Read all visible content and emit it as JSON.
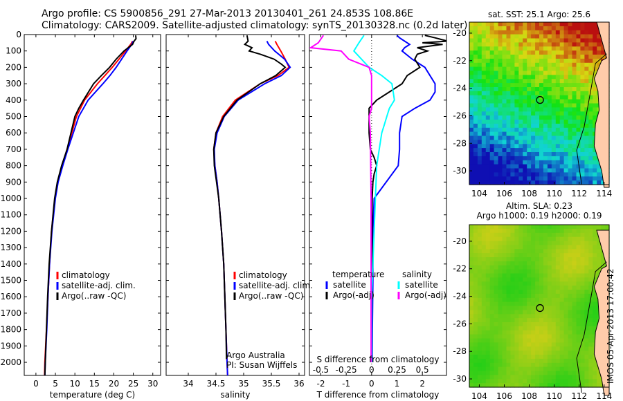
{
  "header": {
    "line1": "Argo profile: CS 5900856_291 27-Mar-2013 20130401_261 24.853S 108.86E",
    "line2": "Climatology: CARS2009. Satellite-adjusted climatology: synTS_20130328.nc (0.2d later)"
  },
  "stamp": "IMOS 05-Apr-2013 17:00:42",
  "colors": {
    "red": "#ff0000",
    "blue": "#0000ff",
    "black": "#000000",
    "cyan": "#00ffff",
    "magenta": "#ff00ff"
  },
  "chart_data": [
    {
      "type": "line",
      "xlabel": "temperature (deg C)",
      "ylabel": "",
      "xlim": [
        -3,
        32
      ],
      "ylim": [
        2080,
        0
      ],
      "xticks": [
        "0",
        "5",
        "10",
        "15",
        "20",
        "25",
        "30"
      ],
      "xtick_values": [
        0,
        5,
        10,
        15,
        20,
        25,
        30
      ],
      "yticks": [
        "0",
        "100",
        "200",
        "300",
        "400",
        "500",
        "600",
        "700",
        "800",
        "900",
        "1000",
        "1100",
        "1200",
        "1300",
        "1400",
        "1500",
        "1600",
        "1700",
        "1800",
        "1900",
        "2000"
      ],
      "ytick_values": [
        0,
        100,
        200,
        300,
        400,
        500,
        600,
        700,
        800,
        900,
        1000,
        1100,
        1200,
        1300,
        1400,
        1500,
        1600,
        1700,
        1800,
        1900,
        2000
      ],
      "legend": [
        "climatology",
        "satellite-adj. clim.",
        "Argo(..raw -QC)"
      ],
      "series": [
        {
          "name": "climatology",
          "color": "red",
          "depth": [
            40,
            60,
            100,
            150,
            200,
            250,
            300,
            400,
            500,
            600,
            700,
            800,
            900,
            1000,
            1200,
            1400,
            1600,
            1800,
            2000,
            2080
          ],
          "values": [
            24.8,
            24.3,
            23,
            21.3,
            19.6,
            17.7,
            15.8,
            12.5,
            10.4,
            9.2,
            8,
            6.8,
            5.6,
            4.9,
            4,
            3.5,
            3.1,
            2.7,
            2.3,
            2.2
          ]
        },
        {
          "name": "satellite-adj. clim.",
          "color": "blue",
          "depth": [
            40,
            60,
            100,
            150,
            200,
            250,
            300,
            400,
            500,
            600,
            700,
            800,
            900,
            1000,
            1200,
            1400,
            1600,
            1800,
            2000,
            2080
          ],
          "values": [
            25,
            24.6,
            23.4,
            22,
            20.6,
            19,
            17.2,
            13.4,
            11,
            9.6,
            8.2,
            6.9,
            5.7,
            5,
            4.1,
            3.5,
            3.1,
            2.8,
            2.4,
            2.3
          ]
        },
        {
          "name": "Argo(..raw -QC)",
          "color": "black",
          "depth": [
            5,
            25,
            40,
            60,
            100,
            150,
            200,
            250,
            300,
            400,
            450,
            500,
            600,
            700,
            800,
            900,
            1000,
            1200,
            1400,
            1600,
            1800,
            2000,
            2080
          ],
          "values": [
            25.6,
            25.7,
            25.2,
            24.8,
            22.6,
            20.6,
            18.9,
            16.8,
            14.8,
            12.2,
            11,
            10,
            9,
            8,
            6.6,
            5.5,
            4.8,
            4,
            3.4,
            3,
            2.7,
            2.4,
            2.3
          ]
        }
      ]
    },
    {
      "type": "line",
      "xlabel": "salinity",
      "ylabel": "",
      "xlim": [
        33.6,
        36.1
      ],
      "ylim": [
        2080,
        0
      ],
      "xticks": [
        "34",
        "34.5",
        "35",
        "35.5",
        "36"
      ],
      "xtick_values": [
        34,
        34.5,
        35,
        35.5,
        36
      ],
      "legend": [
        "climatology",
        "satellite-adj. clim.",
        "Argo(..raw -QC)"
      ],
      "annotation": [
        "Argo Australia",
        "PI: Susan Wijffels"
      ],
      "series": [
        {
          "name": "climatology",
          "color": "red",
          "depth": [
            40,
            60,
            100,
            150,
            200,
            250,
            300,
            400,
            500,
            600,
            700,
            800,
            900,
            1000,
            1200,
            1400,
            1600,
            1800,
            2000,
            2080
          ],
          "values": [
            35.57,
            35.6,
            35.67,
            35.75,
            35.82,
            35.62,
            35.3,
            34.85,
            34.62,
            34.5,
            34.46,
            34.48,
            34.52,
            34.55,
            34.6,
            34.64,
            34.66,
            34.68,
            34.7,
            34.71
          ]
        },
        {
          "name": "satellite-adj. clim.",
          "color": "blue",
          "depth": [
            40,
            60,
            100,
            150,
            200,
            250,
            300,
            400,
            500,
            600,
            700,
            800,
            900,
            1000,
            1200,
            1400,
            1600,
            1800,
            2000,
            2080
          ],
          "values": [
            35.42,
            35.45,
            35.56,
            35.74,
            35.84,
            35.68,
            35.38,
            34.9,
            34.65,
            34.52,
            34.47,
            34.48,
            34.52,
            34.55,
            34.6,
            34.64,
            34.66,
            34.68,
            34.7,
            34.71
          ]
        },
        {
          "name": "Argo(..raw -QC)",
          "color": "black",
          "depth": [
            5,
            40,
            60,
            80,
            100,
            120,
            150,
            180,
            200,
            250,
            300,
            400,
            500,
            600,
            700,
            800,
            900,
            1000,
            1200,
            1400,
            1600,
            1800,
            1980
          ],
          "values": [
            35.06,
            35.08,
            35.02,
            35.15,
            35.1,
            35.3,
            35.55,
            35.68,
            35.75,
            35.58,
            35.3,
            34.88,
            34.64,
            34.5,
            34.46,
            34.47,
            34.51,
            34.55,
            34.6,
            34.64,
            34.66,
            34.68,
            34.69
          ]
        }
      ]
    },
    {
      "type": "line",
      "xlabel": "T difference from climatology",
      "xlabel2": "S difference from climatology",
      "xlim": [
        -2.45,
        2.95
      ],
      "ylim": [
        2080,
        0
      ],
      "xticks": [
        "-2",
        "-1",
        "0",
        "1",
        "2"
      ],
      "xtick_values": [
        -2,
        -1,
        0,
        1,
        2
      ],
      "xticks_S": [
        "-0.5",
        "-0.25",
        "0",
        "0.25",
        "0.5"
      ],
      "legend_T_title": "temperature",
      "legend_S_title": "salinity",
      "legend": [
        "satellite",
        "Argo(-adj)",
        "satellite",
        "Argo(-adj)"
      ],
      "series": [
        {
          "name": "satellite",
          "group": "temperature",
          "color": "blue",
          "depth": [
            5,
            20,
            40,
            60,
            80,
            100,
            150,
            200,
            250,
            300,
            350,
            400,
            450,
            500,
            600,
            700,
            800,
            1000,
            1200,
            1500,
            1800,
            2000
          ],
          "values": [
            1,
            1.1,
            1.3,
            1.5,
            1.3,
            1.2,
            1.6,
            2.1,
            2.3,
            2.5,
            2.5,
            2.3,
            1.7,
            1.2,
            1.1,
            1.1,
            1.05,
            0.1,
            0.05,
            0.05,
            0.03,
            0.02
          ]
        },
        {
          "name": "Argo(-adj)",
          "group": "temperature",
          "color": "black",
          "depth": [
            5,
            20,
            40,
            50,
            60,
            80,
            100,
            120,
            150,
            200,
            250,
            300,
            350,
            400,
            450,
            500,
            600,
            700,
            750,
            800,
            850,
            900,
            1000,
            1500,
            2000
          ],
          "values": [
            2.1,
            2.5,
            3,
            2,
            2.8,
            1.8,
            2.2,
            1.8,
            1.7,
            1.9,
            1.4,
            1.2,
            0.7,
            0.2,
            -0.1,
            -0.1,
            -0.1,
            -0.05,
            0.1,
            0.2,
            0.1,
            0.05,
            0.02,
            0.01,
            0.0
          ]
        },
        {
          "name": "satellite",
          "group": "salinity",
          "color": "cyan",
          "depth": [
            5,
            50,
            100,
            150,
            200,
            250,
            300,
            400,
            450,
            500,
            550,
            600,
            800,
            1000,
            1200,
            1400,
            1600,
            1800,
            2000
          ],
          "values": [
            -0.3,
            -0.5,
            -0.7,
            -0.4,
            -0.1,
            0.4,
            0.8,
            0.9,
            0.7,
            0.6,
            0.5,
            0.4,
            0.2,
            0.15,
            0.1,
            0.05,
            0.0,
            0.0,
            0.0
          ]
        },
        {
          "name": "Argo(-adj)",
          "group": "salinity",
          "color": "magenta",
          "depth": [
            5,
            50,
            80,
            100,
            150,
            200,
            250,
            300,
            350,
            400,
            450,
            500,
            600,
            1000,
            1500,
            2000
          ],
          "values": [
            -1.9,
            -2.1,
            -2.4,
            -1.2,
            -0.9,
            -0.1,
            0,
            0,
            0,
            0,
            0,
            -0.1,
            -0.05,
            -0.02,
            -0.02,
            -0.02
          ]
        }
      ]
    }
  ],
  "maps": [
    {
      "title": "sat. SST: 25.1 Argo: 25.6",
      "xticks": [
        "104",
        "106",
        "108",
        "110",
        "112",
        "114"
      ],
      "xtick_values": [
        104,
        106,
        108,
        110,
        112,
        114
      ],
      "yticks": [
        "-20",
        "-22",
        "-24",
        "-26",
        "-28",
        "-30"
      ],
      "ytick_values": [
        -20,
        -22,
        -24,
        -26,
        -28,
        -30
      ],
      "xlim": [
        103.2,
        114.4
      ],
      "ylim": [
        -31,
        -19.2
      ],
      "marker": [
        108.86,
        -24.853
      ]
    },
    {
      "title_line1": "Altim. SLA: 0.23",
      "title_line2": "Argo h1000: 0.19 h2000: 0.19",
      "xticks": [
        "104",
        "106",
        "108",
        "110",
        "112",
        "114"
      ],
      "xtick_values": [
        104,
        106,
        108,
        110,
        112,
        114
      ],
      "yticks": [
        "-20",
        "-22",
        "-24",
        "-26",
        "-28",
        "-30"
      ],
      "ytick_values": [
        -20,
        -22,
        -24,
        -26,
        -28,
        -30
      ],
      "xlim": [
        103.2,
        114.4
      ],
      "ylim": [
        -30.6,
        -18.8
      ],
      "marker": [
        108.86,
        -24.853
      ]
    }
  ]
}
